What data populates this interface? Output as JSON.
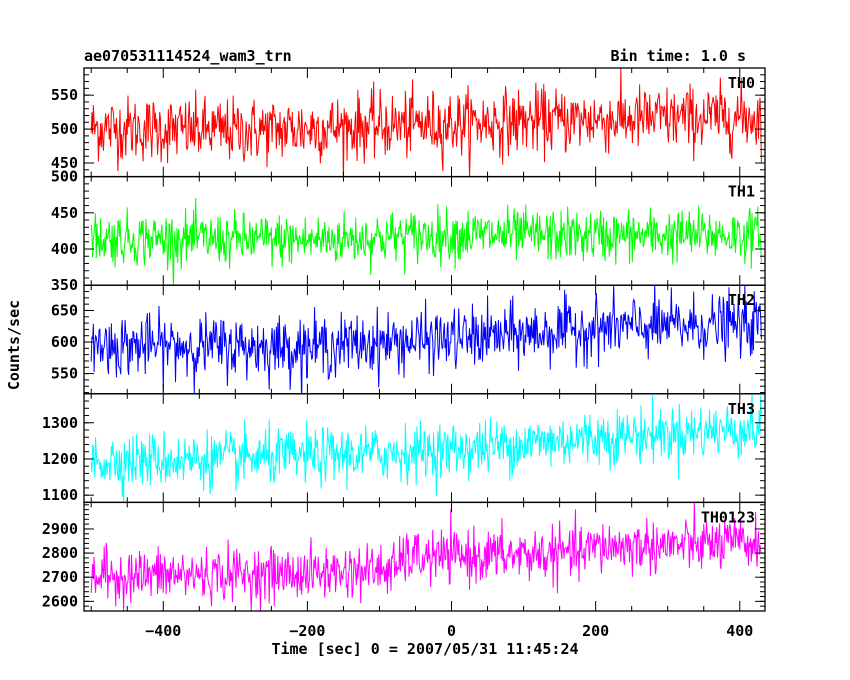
{
  "chart_data": {
    "type": "line",
    "title": "ae070531114524_wam3_trn",
    "bin_time_label": "Bin time: 1.0 s",
    "xlabel": "Time [sec] 0 = 2007/05/31 11:45:24",
    "ylabel": "Counts/sec",
    "xlim": [
      -510,
      435
    ],
    "data_range": [
      -500,
      430
    ],
    "x_ticks": [
      -400,
      -200,
      0,
      200,
      400
    ],
    "x_tick_labels": [
      "−400",
      "−200",
      "0",
      "200",
      "400"
    ],
    "series": [
      {
        "name": "TH0",
        "color": "#ff0000",
        "ylim": [
          430,
          590
        ],
        "y_ticks": [
          450,
          500,
          550
        ],
        "y_tick_labels": [
          "450",
          "500",
          "550"
        ],
        "trend": [
          [
            -500,
            502
          ],
          [
            -300,
            497
          ],
          [
            -100,
            505
          ],
          [
            0,
            508
          ],
          [
            100,
            512
          ],
          [
            250,
            515
          ],
          [
            430,
            518
          ]
        ],
        "noise_sd": 24
      },
      {
        "name": "TH1",
        "color": "#00ff00",
        "ylim": [
          350,
          500
        ],
        "y_ticks": [
          350,
          400,
          450,
          500
        ],
        "y_tick_labels": [
          "350",
          "400",
          "450",
          "500"
        ],
        "trend": [
          [
            -500,
            415
          ],
          [
            -200,
            412
          ],
          [
            0,
            420
          ],
          [
            200,
            418
          ],
          [
            430,
            420
          ]
        ],
        "noise_sd": 18
      },
      {
        "name": "TH2",
        "color": "#0000ff",
        "ylim": [
          518,
          690
        ],
        "y_ticks": [
          550,
          600,
          650
        ],
        "y_tick_labels": [
          "550",
          "600",
          "650"
        ],
        "trend": [
          [
            -500,
            595
          ],
          [
            -200,
            592
          ],
          [
            0,
            605
          ],
          [
            100,
            612
          ],
          [
            200,
            622
          ],
          [
            430,
            628
          ]
        ],
        "noise_sd": 24
      },
      {
        "name": "TH3",
        "color": "#00ffff",
        "ylim": [
          1080,
          1380
        ],
        "y_ticks": [
          1100,
          1200,
          1300
        ],
        "y_tick_labels": [
          "1100",
          "1200",
          "1300"
        ],
        "trend": [
          [
            -500,
            1195
          ],
          [
            -300,
            1200
          ],
          [
            -100,
            1215
          ],
          [
            0,
            1225
          ],
          [
            200,
            1260
          ],
          [
            430,
            1285
          ]
        ],
        "noise_sd": 38
      },
      {
        "name": "TH0123",
        "color": "#ff00ff",
        "ylim": [
          2560,
          3010
        ],
        "y_ticks": [
          2600,
          2700,
          2800,
          2900
        ],
        "y_tick_labels": [
          "2600",
          "2700",
          "2800",
          "2900"
        ],
        "trend": [
          [
            -500,
            2705
          ],
          [
            -200,
            2715
          ],
          [
            -72,
            2735
          ],
          [
            -70,
            2780
          ],
          [
            0,
            2785
          ],
          [
            180,
            2800
          ],
          [
            200,
            2825
          ],
          [
            430,
            2840
          ]
        ],
        "noise_sd": 55
      }
    ],
    "grid": false,
    "legend": "none"
  }
}
